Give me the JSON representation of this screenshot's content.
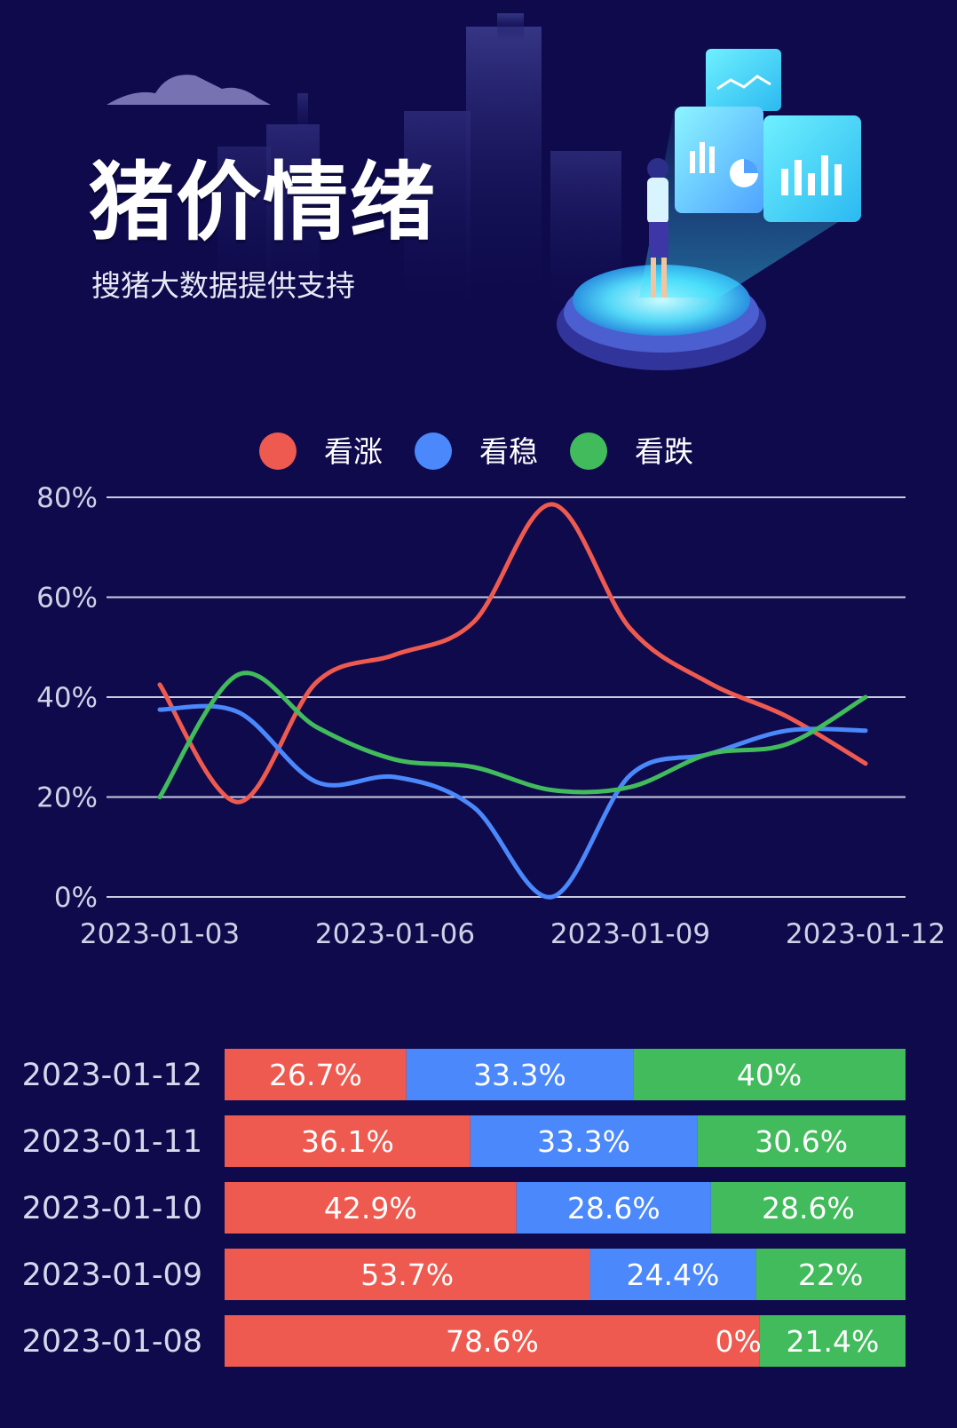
{
  "header": {
    "title": "猪价情绪",
    "subtitle": "搜猪大数据提供支持"
  },
  "colors": {
    "background": "#0e0a4c",
    "rise": "#ee5a4f",
    "stable": "#4a88fb",
    "fall": "#41bb5b"
  },
  "chart_data": [
    {
      "type": "line",
      "x": [
        "2023-01-03",
        "2023-01-04",
        "2023-01-05",
        "2023-01-06",
        "2023-01-07",
        "2023-01-08",
        "2023-01-09",
        "2023-01-10",
        "2023-01-11",
        "2023-01-12"
      ],
      "x_tick_labels": [
        "2023-01-03",
        "2023-01-06",
        "2023-01-09",
        "2023-01-12"
      ],
      "y_tick_labels": [
        "0%",
        "20%",
        "40%",
        "60%",
        "80%"
      ],
      "ylim": [
        0,
        80
      ],
      "grid": true,
      "legend_position": "top-center",
      "series": [
        {
          "name": "看涨",
          "color": "#ee5a4f",
          "values": [
            42.5,
            19.0,
            43.0,
            48.5,
            55.0,
            78.6,
            53.7,
            42.9,
            36.1,
            26.7
          ]
        },
        {
          "name": "看稳",
          "color": "#4a88fb",
          "values": [
            37.5,
            37.0,
            23.0,
            24.0,
            18.0,
            0,
            24.4,
            28.6,
            33.3,
            33.3
          ]
        },
        {
          "name": "看跌",
          "color": "#41bb5b",
          "values": [
            20.0,
            44.5,
            34.0,
            27.5,
            26.0,
            21.4,
            22.0,
            28.6,
            30.6,
            40.0
          ]
        }
      ]
    },
    {
      "type": "bar",
      "orientation": "horizontal",
      "stacked": true,
      "categories": [
        "2023-01-12",
        "2023-01-11",
        "2023-01-10",
        "2023-01-09",
        "2023-01-08"
      ],
      "series": [
        {
          "name": "看涨",
          "color": "#ee5a4f",
          "values": [
            26.7,
            36.1,
            42.9,
            53.7,
            78.6
          ],
          "labels": [
            "26.7%",
            "36.1%",
            "42.9%",
            "53.7%",
            "78.6%"
          ]
        },
        {
          "name": "看稳",
          "color": "#4a88fb",
          "values": [
            33.3,
            33.3,
            28.6,
            24.4,
            0
          ],
          "labels": [
            "33.3%",
            "33.3%",
            "28.6%",
            "24.4%",
            "0%"
          ]
        },
        {
          "name": "看跌",
          "color": "#41bb5b",
          "values": [
            40,
            30.6,
            28.6,
            22,
            21.4
          ],
          "labels": [
            "40%",
            "30.6%",
            "28.6%",
            "22%",
            "21.4%"
          ]
        }
      ]
    }
  ]
}
